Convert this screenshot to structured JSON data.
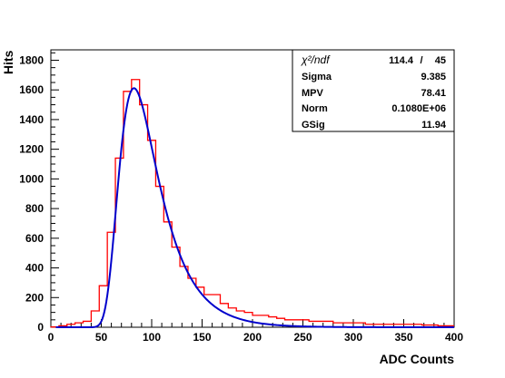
{
  "chart_data": {
    "type": "histogram",
    "xlabel": "ADC Counts",
    "ylabel": "Hits",
    "xlim": [
      0,
      400
    ],
    "ylim": [
      0,
      1870
    ],
    "x_ticks": [
      "0",
      "50",
      "100",
      "150",
      "200",
      "250",
      "300",
      "350",
      "400"
    ],
    "y_ticks": [
      "0",
      "200",
      "400",
      "600",
      "800",
      "1000",
      "1200",
      "1400",
      "1600",
      "1800"
    ],
    "grid": false,
    "legend": "none",
    "bin_width": 8,
    "bin_start": 0,
    "histogram_counts": [
      2,
      10,
      20,
      30,
      40,
      110,
      280,
      640,
      1140,
      1590,
      1670,
      1500,
      1260,
      950,
      710,
      540,
      410,
      330,
      270,
      220,
      220,
      160,
      130,
      110,
      100,
      80,
      80,
      70,
      60,
      50,
      50,
      50,
      40,
      40,
      40,
      30,
      30,
      30,
      30,
      20,
      20,
      20,
      20,
      20,
      20,
      20,
      15,
      15,
      10,
      10
    ],
    "fit": {
      "type": "landau-gauss",
      "sigma": 9.385,
      "mpv": 78.41,
      "norm": 108000,
      "gsig": 11.94
    },
    "stats_box": {
      "chi2_label": "χ²/ndf",
      "chi2": "114.4",
      "sep": "/",
      "ndf": "45",
      "rows": [
        {
          "label": "Sigma",
          "value": "9.385"
        },
        {
          "label": "MPV",
          "value": "78.41"
        },
        {
          "label": "Norm",
          "value": "0.1080E+06"
        },
        {
          "label": "GSig",
          "value": "11.94"
        }
      ]
    },
    "colors": {
      "histogram": "#ff0000",
      "fit": "#0000cc",
      "axes": "#000000"
    }
  }
}
